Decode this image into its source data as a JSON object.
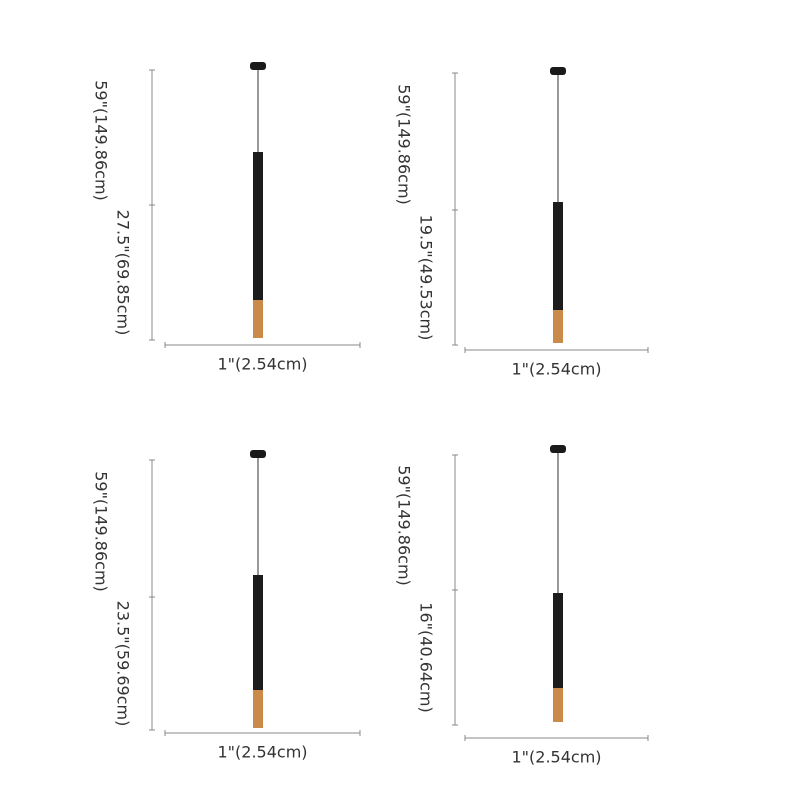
{
  "panels": [
    {
      "total": "59\"(149.86cm)",
      "length": "27.5\"(69.85cm)",
      "width": "1\"(2.54cm)"
    },
    {
      "total": "59\"(149.86cm)",
      "length": "19.5\"(49.53cm)",
      "width": "1\"(2.54cm)"
    },
    {
      "total": "59\"(149.86cm)",
      "length": "23.5\"(59.69cm)",
      "width": "1\"(2.54cm)"
    },
    {
      "total": "59\"(149.86cm)",
      "length": "16\"(40.64cm)",
      "width": "1\"(2.54cm)"
    }
  ]
}
